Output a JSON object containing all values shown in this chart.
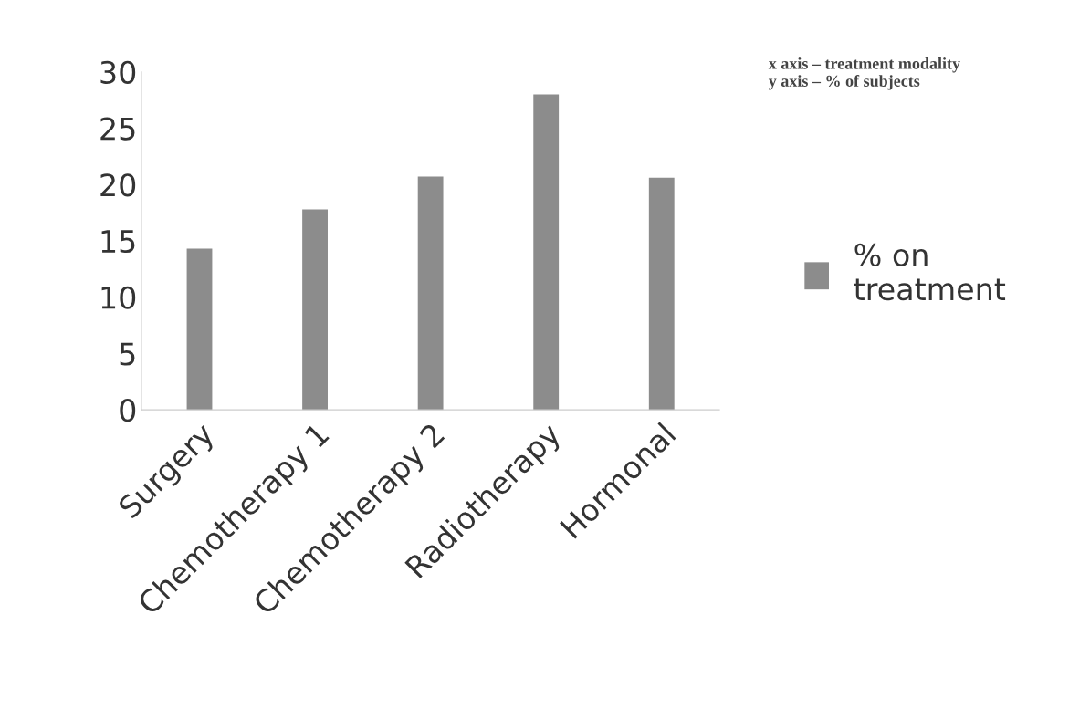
{
  "chart_data": {
    "type": "bar",
    "categories": [
      "Surgery",
      "Chemotherapy 1",
      "Chemotherapy 2",
      "Radiotherapy",
      "Hormonal"
    ],
    "series": [
      {
        "name": "% on treatment",
        "color": "#8c8c8c",
        "values": [
          14.3,
          17.8,
          20.7,
          28.0,
          20.6
        ]
      }
    ],
    "ylim": [
      0,
      30
    ],
    "yticks": [
      0,
      5,
      10,
      15,
      20,
      25,
      30
    ],
    "annotations": [
      "x axis – treatment modality\ny axis – % of subjects"
    ],
    "legend": "right",
    "grid": false
  }
}
